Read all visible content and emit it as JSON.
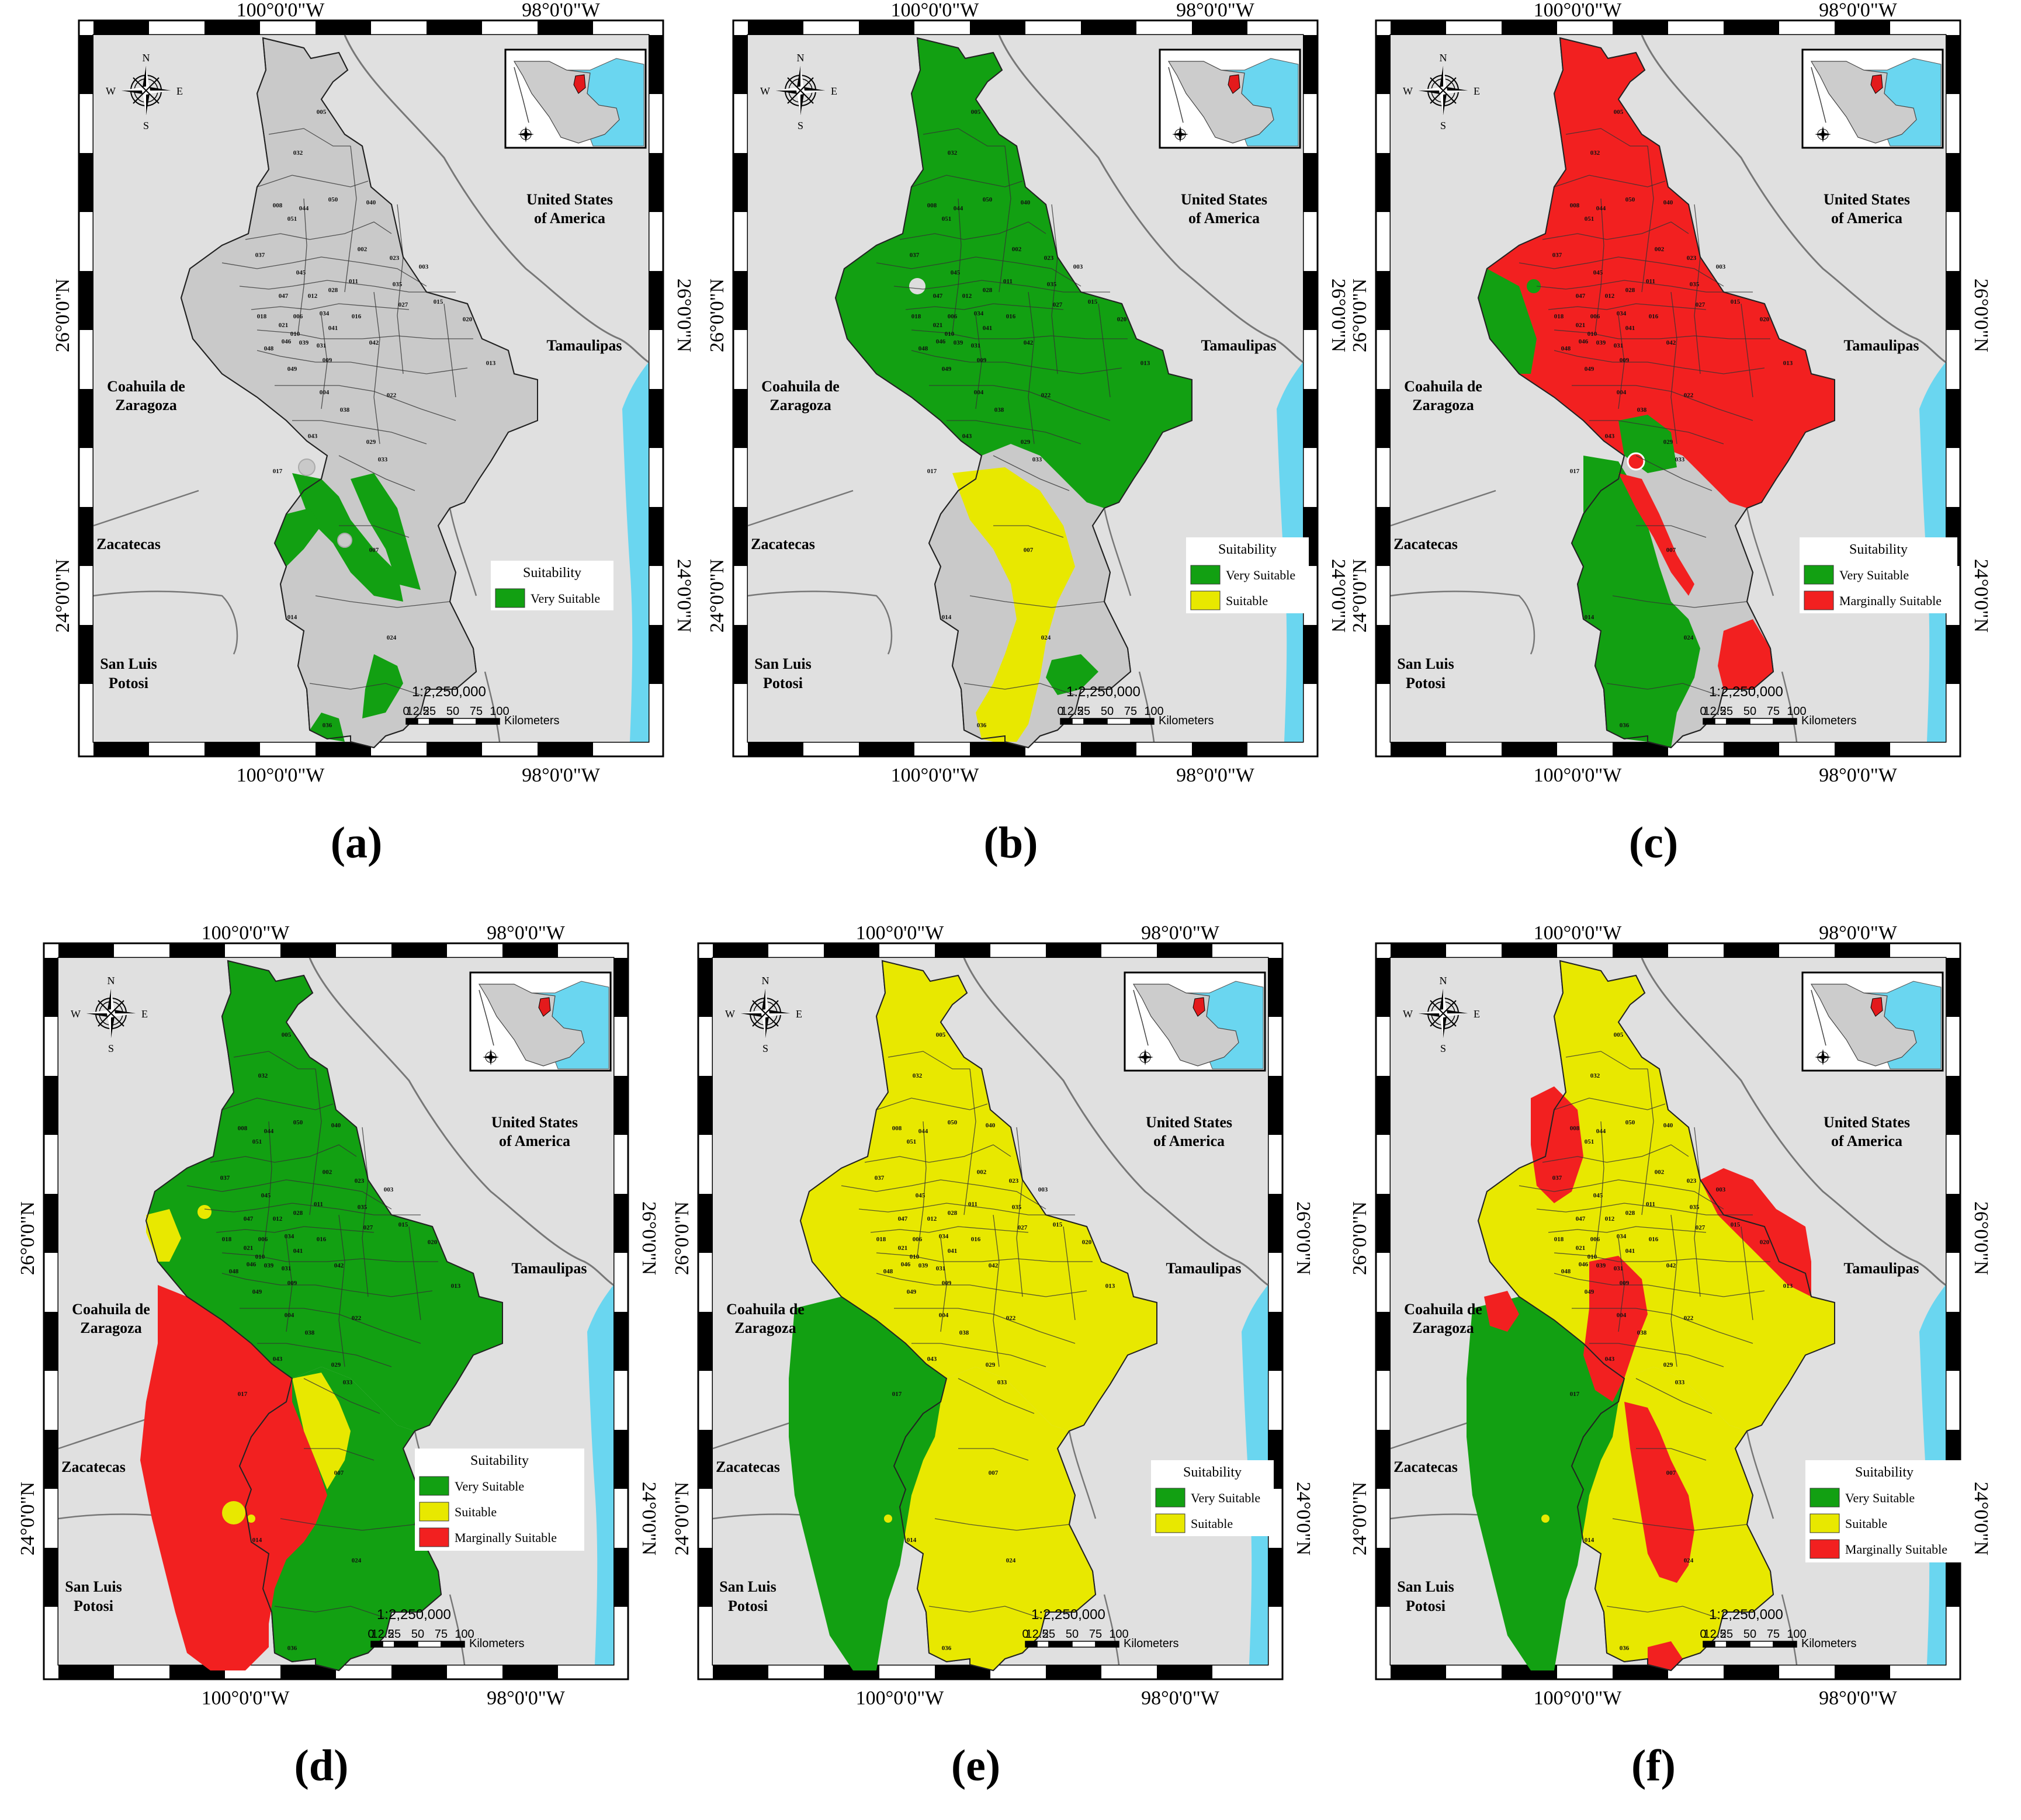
{
  "coordinates": {
    "lon_west": "100°0'0\"W",
    "lon_east": "98°0'0\"W",
    "lat_north": "26°0'0\"N",
    "lat_south": "24°0'0\"N"
  },
  "regions": {
    "usa_line1": "United States",
    "usa_line2": "of America",
    "tamaulipas": "Tamaulipas",
    "coahuila_line1": "Coahuila de",
    "coahuila_line2": "Zaragoza",
    "zacatecas": "Zacatecas",
    "slp_line1": "San Luis",
    "slp_line2": "Potosi"
  },
  "compass": {
    "n": "N",
    "s": "S",
    "e": "E",
    "w": "W"
  },
  "scale": {
    "ratio": "1:2,250,000",
    "ticks": [
      "0",
      "12.5",
      "25",
      "50",
      "75",
      "100"
    ],
    "unit": "Kilometers"
  },
  "legend_title": "Suitability",
  "classes": {
    "very_suitable": "Very Suitable",
    "suitable": "Suitable",
    "marginally_suitable": "Marginally Suitable"
  },
  "colors": {
    "very_suitable": "#12a012",
    "suitable": "#e8e800",
    "marginally_suitable": "#f22020",
    "not_suitable": "#c9c9c9",
    "background": "#e0e0e0",
    "sea": "#6ad6f0",
    "border_line": "#777777"
  },
  "municipalities": [
    "005",
    "032",
    "008",
    "044",
    "050",
    "040",
    "051",
    "037",
    "002",
    "023",
    "003",
    "045",
    "011",
    "035",
    "028",
    "047",
    "012",
    "027",
    "015",
    "018",
    "006",
    "034",
    "016",
    "020",
    "021",
    "041",
    "010",
    "046",
    "039",
    "031",
    "048",
    "042",
    "009",
    "013",
    "049",
    "004",
    "022",
    "038",
    "043",
    "029",
    "033",
    "017",
    "007",
    "014",
    "024",
    "036"
  ],
  "panels": [
    {
      "label": "(a)",
      "legend": [
        "very_suitable"
      ]
    },
    {
      "label": "(b)",
      "legend": [
        "very_suitable",
        "suitable"
      ]
    },
    {
      "label": "(c)",
      "legend": [
        "very_suitable",
        "marginally_suitable"
      ]
    },
    {
      "label": "(d)",
      "legend": [
        "very_suitable",
        "suitable",
        "marginally_suitable"
      ]
    },
    {
      "label": "(e)",
      "legend": [
        "very_suitable",
        "suitable"
      ]
    },
    {
      "label": "(f)",
      "legend": [
        "very_suitable",
        "suitable",
        "marginally_suitable"
      ]
    }
  ]
}
